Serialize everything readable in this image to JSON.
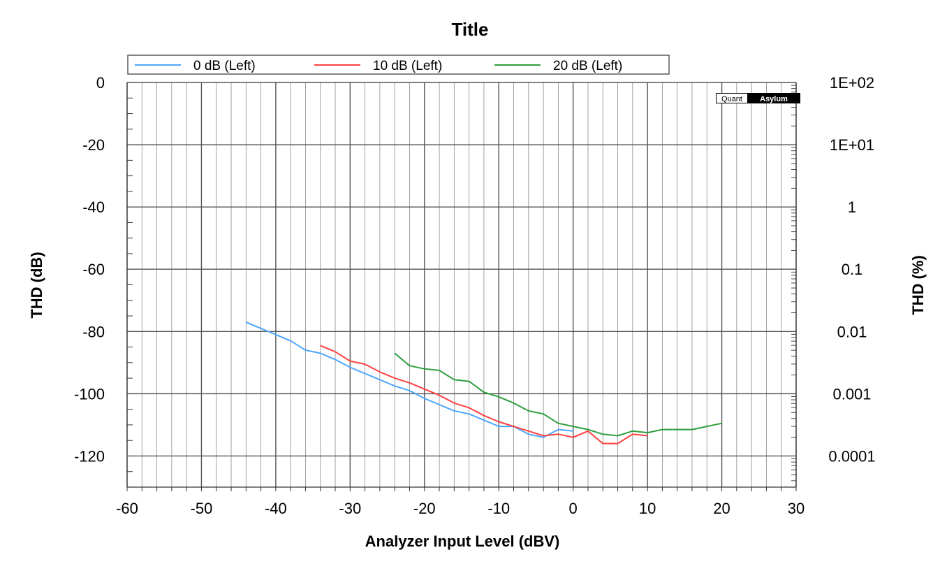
{
  "chart_data": {
    "type": "line",
    "title": "Title",
    "xlabel": "Analyzer Input Level (dBV)",
    "ylabel": "THD (dB)",
    "y2label": "THD (%)",
    "xlim": [
      -60,
      30
    ],
    "ylim": [
      -130,
      0
    ],
    "x_ticks": [
      "-60",
      "-50",
      "-40",
      "-30",
      "-20",
      "-10",
      "0",
      "10",
      "20",
      "30"
    ],
    "y_ticks": [
      "0",
      "-20",
      "-40",
      "-60",
      "-80",
      "-100",
      "-120"
    ],
    "y2_ticks": [
      "1E+02",
      "1E+01",
      "1",
      "0.1",
      "0.01",
      "0.001",
      "0.0001"
    ],
    "y2_scale": "log",
    "grid": true,
    "legend_position": "top",
    "logo": "QuantAsylum",
    "series": [
      {
        "name": "0 dB (Left)",
        "color": "#4da6ff",
        "x": [
          -44,
          -42,
          -40,
          -38,
          -36,
          -34,
          -32,
          -30,
          -28,
          -26,
          -24,
          -22,
          -20,
          -18,
          -16,
          -14,
          -12,
          -10,
          -8,
          -6,
          -4,
          -2,
          0
        ],
        "y": [
          -77,
          -79,
          -81,
          -83,
          -86,
          -87,
          -89,
          -91.5,
          -93.5,
          -95.5,
          -97.5,
          -99,
          -101.5,
          -103.5,
          -105.5,
          -106.5,
          -108.5,
          -110.5,
          -110.5,
          -113,
          -114,
          -111.5,
          -112
        ]
      },
      {
        "name": "10 dB (Left)",
        "color": "#ff4040",
        "x": [
          -34,
          -32,
          -30,
          -28,
          -26,
          -24,
          -22,
          -20,
          -18,
          -16,
          -14,
          -12,
          -10,
          -8,
          -6,
          -4,
          -2,
          0,
          2,
          4,
          6,
          8,
          10
        ],
        "y": [
          -84.5,
          -86.5,
          -89.5,
          -90.5,
          -93,
          -95,
          -96.5,
          -98.5,
          -100.5,
          -103,
          -104.5,
          -107,
          -109,
          -110.5,
          -112,
          -113.5,
          -113,
          -114,
          -112,
          -116,
          -116,
          -113,
          -113.5
        ]
      },
      {
        "name": "20 dB (Left)",
        "color": "#2e9e3e",
        "x": [
          -24,
          -22,
          -20,
          -18,
          -16,
          -14,
          -12,
          -10,
          -8,
          -6,
          -4,
          -2,
          0,
          2,
          4,
          6,
          8,
          10,
          12,
          14,
          16,
          18,
          20
        ],
        "y": [
          -87,
          -91,
          -92,
          -92.5,
          -95.5,
          -96,
          -99.5,
          -101,
          -103,
          -105.5,
          -106.5,
          -109.5,
          -110.5,
          -111.5,
          -113,
          -113.5,
          -112,
          -112.5,
          -111.5,
          -111.5,
          -111.5,
          -110.5,
          -109.5
        ]
      }
    ]
  }
}
